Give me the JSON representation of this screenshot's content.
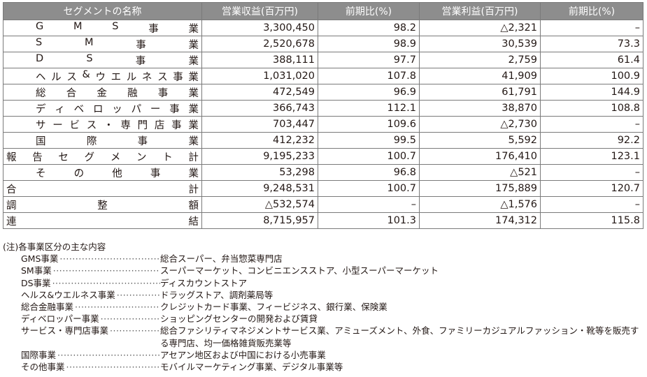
{
  "table": {
    "headers": [
      "セグメントの名称",
      "営業収益(百万円)",
      "前期比(%)",
      "営業利益(百万円)",
      "前期比(%)"
    ],
    "rows": [
      {
        "name": "GMS事業",
        "revenue": "3,300,450",
        "rev_yoy": "98.2",
        "profit": "△2,321",
        "profit_yoy": "–",
        "indent": true
      },
      {
        "name": "SM事業",
        "revenue": "2,520,678",
        "rev_yoy": "98.9",
        "profit": "30,539",
        "profit_yoy": "73.3",
        "indent": true
      },
      {
        "name": "DS事業",
        "revenue": "388,111",
        "rev_yoy": "97.7",
        "profit": "2,759",
        "profit_yoy": "61.4",
        "indent": true
      },
      {
        "name": "ヘルス&ウエルネス事業",
        "revenue": "1,031,020",
        "rev_yoy": "107.8",
        "profit": "41,909",
        "profit_yoy": "100.9",
        "indent": true
      },
      {
        "name": "総合金融事業",
        "revenue": "472,549",
        "rev_yoy": "96.9",
        "profit": "61,791",
        "profit_yoy": "144.9",
        "indent": true
      },
      {
        "name": "ディベロッパー事業",
        "revenue": "366,743",
        "rev_yoy": "112.1",
        "profit": "38,870",
        "profit_yoy": "108.8",
        "indent": true
      },
      {
        "name": "サービス・専門店事業",
        "revenue": "703,447",
        "rev_yoy": "109.6",
        "profit": "△2,730",
        "profit_yoy": "–",
        "indent": true
      },
      {
        "name": "国際事業",
        "revenue": "412,232",
        "rev_yoy": "99.5",
        "profit": "5,592",
        "profit_yoy": "92.2",
        "indent": true
      },
      {
        "name": "報告セグメント計",
        "revenue": "9,195,233",
        "rev_yoy": "100.7",
        "profit": "176,410",
        "profit_yoy": "123.1",
        "indent": false
      },
      {
        "name": "その他事業",
        "revenue": "53,298",
        "rev_yoy": "96.8",
        "profit": "△521",
        "profit_yoy": "–",
        "indent": true
      },
      {
        "name": "合計",
        "revenue": "9,248,531",
        "rev_yoy": "100.7",
        "profit": "175,889",
        "profit_yoy": "120.7",
        "indent": false
      },
      {
        "name": "調整額",
        "revenue": "△532,574",
        "rev_yoy": "–",
        "profit": "△1,576",
        "profit_yoy": "–",
        "indent": false
      },
      {
        "name": "連結",
        "revenue": "8,715,957",
        "rev_yoy": "101.3",
        "profit": "174,312",
        "profit_yoy": "115.8",
        "indent": false
      }
    ]
  },
  "notes": {
    "heading": "(注)各事業区分の主な内容",
    "items": [
      {
        "term": "GMS事業",
        "desc": "総合スーパー、弁当惣菜専門店"
      },
      {
        "term": "SM事業",
        "desc": "スーパーマーケット、コンビニエンスストア、小型スーパーマーケット"
      },
      {
        "term": "DS事業",
        "desc": "ディスカウントストア"
      },
      {
        "term": "ヘルス&ウエルネス事業",
        "desc": "ドラッグストア、調剤薬局等"
      },
      {
        "term": "総合金融事業",
        "desc": "クレジットカード事業、フィービジネス、銀行業、保険業"
      },
      {
        "term": "ディベロッパー事業",
        "desc": "ショッピングセンターの開発および賃貸"
      },
      {
        "term": "サービス・専門店事業",
        "desc": "総合ファシリティマネジメントサービス業、アミューズメント、外食、ファミリーカジュアルファッション・靴等を販売する専門店、均一価格雑貨販売業等"
      },
      {
        "term": "国際事業",
        "desc": "アセアン地区および中国における小売事業"
      },
      {
        "term": "その他事業",
        "desc": "モバイルマーケティング事業、デジタル事業等"
      }
    ]
  }
}
